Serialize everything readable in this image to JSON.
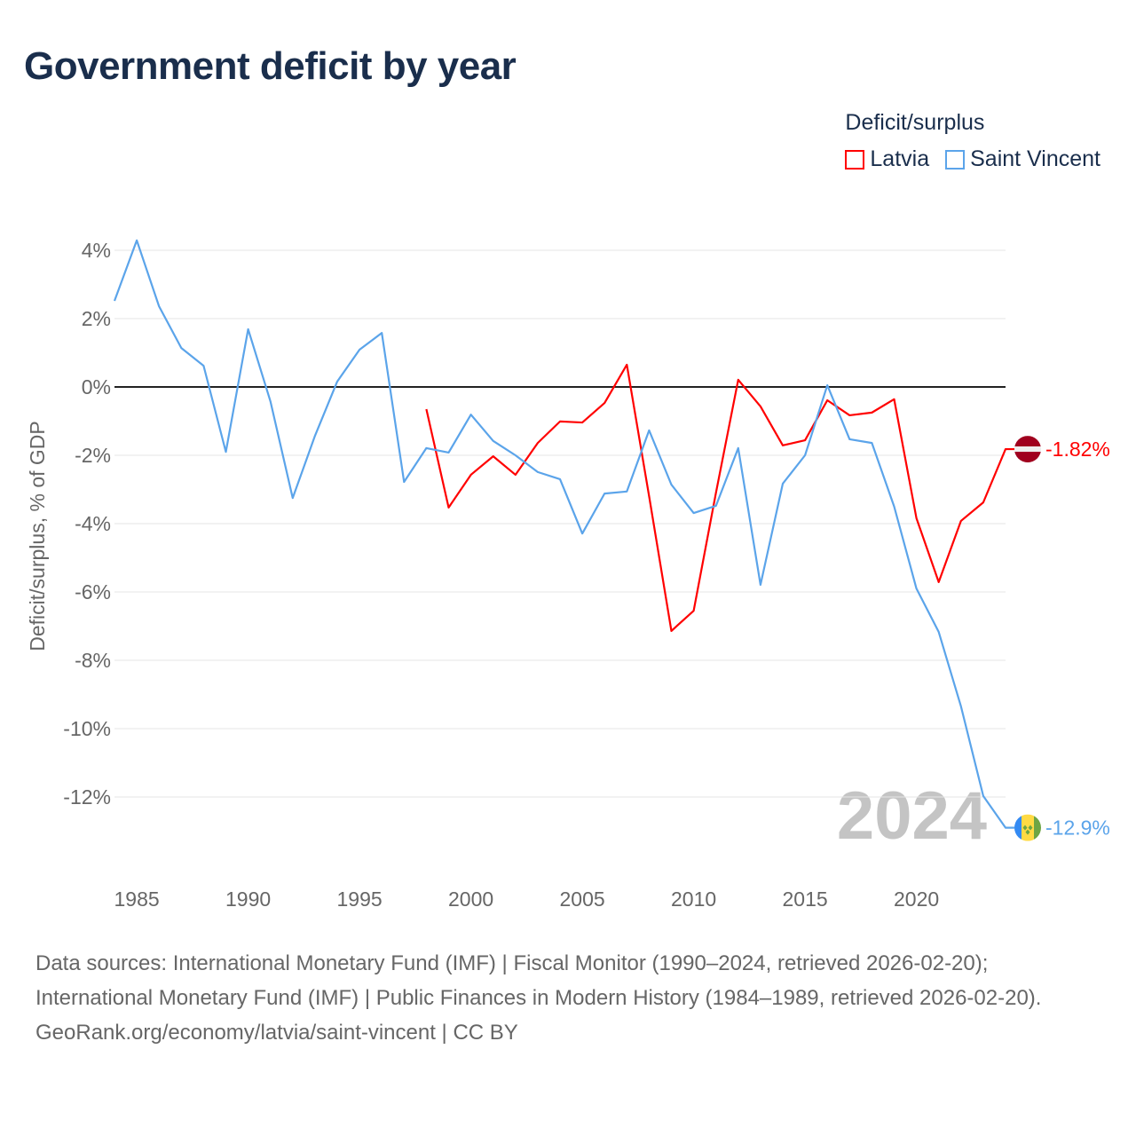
{
  "chart_data": {
    "type": "line",
    "title": "Government deficit by year",
    "ylabel": "Deficit/surplus, % of GDP",
    "xlabel": "",
    "xlim": [
      1984,
      2024
    ],
    "ylim": [
      -13,
      4.5
    ],
    "yticks": [
      4,
      2,
      0,
      -2,
      -4,
      -6,
      -8,
      -10,
      -12
    ],
    "ytick_labels": [
      "4%",
      "2%",
      "0%",
      "-2%",
      "-4%",
      "-6%",
      "-8%",
      "-10%",
      "-12%"
    ],
    "xticks": [
      1985,
      1990,
      1995,
      2000,
      2005,
      2010,
      2015,
      2020
    ],
    "xtick_labels": [
      "1985",
      "1990",
      "1995",
      "2000",
      "2005",
      "2010",
      "2015",
      "2020"
    ],
    "grid": true,
    "legend_title": "Deficit/surplus",
    "legend_position": "top-right",
    "watermark_year": "2024",
    "series": [
      {
        "name": "Latvia",
        "color": "#ff0000",
        "end_label": "-1.82%",
        "flag": "latvia-flag",
        "x": [
          1998,
          1999,
          2000,
          2001,
          2002,
          2003,
          2004,
          2005,
          2006,
          2007,
          2008,
          2009,
          2010,
          2011,
          2012,
          2013,
          2014,
          2015,
          2016,
          2017,
          2018,
          2019,
          2020,
          2021,
          2022,
          2023,
          2024
        ],
        "values": [
          -0.65,
          -3.53,
          -2.57,
          -2.03,
          -2.57,
          -1.64,
          -1.01,
          -1.04,
          -0.47,
          0.65,
          -3.2,
          -7.14,
          -6.55,
          -3.1,
          0.21,
          -0.57,
          -1.71,
          -1.56,
          -0.39,
          -0.83,
          -0.75,
          -0.36,
          -3.84,
          -5.71,
          -3.92,
          -3.38,
          -1.82
        ]
      },
      {
        "name": "Saint Vincent",
        "color": "#5ba4ea",
        "end_label": "-12.9%",
        "flag": "saint-vincent-flag",
        "x": [
          1984,
          1985,
          1986,
          1987,
          1988,
          1989,
          1990,
          1991,
          1992,
          1993,
          1994,
          1995,
          1996,
          1997,
          1998,
          1999,
          2000,
          2001,
          2002,
          2003,
          2004,
          2005,
          2006,
          2007,
          2008,
          2009,
          2010,
          2011,
          2012,
          2013,
          2014,
          2015,
          2016,
          2017,
          2018,
          2019,
          2020,
          2021,
          2022,
          2023,
          2024
        ],
        "values": [
          2.52,
          4.29,
          2.36,
          1.14,
          0.62,
          -1.9,
          1.69,
          -0.42,
          -3.25,
          -1.43,
          0.16,
          1.09,
          1.58,
          -2.78,
          -1.79,
          -1.92,
          -0.81,
          -1.58,
          -2.0,
          -2.49,
          -2.7,
          -4.29,
          -3.12,
          -3.06,
          -1.27,
          -2.86,
          -3.69,
          -3.48,
          -1.79,
          -5.79,
          -2.83,
          -2.0,
          0.05,
          -1.53,
          -1.64,
          -3.5,
          -5.9,
          -7.17,
          -9.35,
          -11.97,
          -12.9
        ]
      }
    ]
  },
  "footer": {
    "sources": "Data sources: International Monetary Fund (IMF) | Fiscal Monitor (1990–2024, retrieved 2026-02-20); International Monetary Fund (IMF) | Public Finances in Modern History (1984–1989, retrieved 2026-02-20).",
    "credit": "GeoRank.org/economy/latvia/saint-vincent | CC BY"
  }
}
